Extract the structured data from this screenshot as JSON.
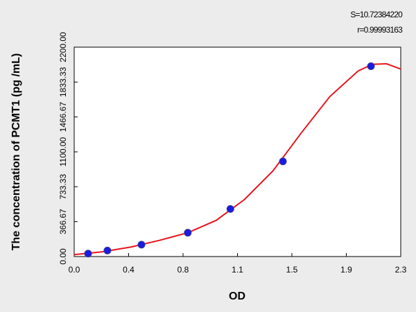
{
  "chart_data": {
    "type": "scatter",
    "x_label": "OD",
    "y_label": "The concentration of PCMT1 (pg /mL)",
    "annotations": [
      "S=10.72384220",
      "r=0.99993163"
    ],
    "xlim": [
      0,
      2.3
    ],
    "ylim": [
      0,
      2200
    ],
    "xticks": [
      {
        "value": 0,
        "label": "0.0"
      },
      {
        "value": 0.3833,
        "label": "0.4"
      },
      {
        "value": 0.7667,
        "label": "0.8"
      },
      {
        "value": 1.15,
        "label": "1.1"
      },
      {
        "value": 1.5333,
        "label": "1.5"
      },
      {
        "value": 1.9167,
        "label": "1.9"
      },
      {
        "value": 2.3,
        "label": "2.3"
      }
    ],
    "yticks": [
      {
        "value": 0,
        "label": "0.00"
      },
      {
        "value": 366.67,
        "label": "366.67"
      },
      {
        "value": 733.33,
        "label": "733.33"
      },
      {
        "value": 1100,
        "label": "1100.00"
      },
      {
        "value": 1466.67,
        "label": "1466.67"
      },
      {
        "value": 1833.33,
        "label": "1833.33"
      },
      {
        "value": 2200,
        "label": "2200.00"
      }
    ],
    "grid": false,
    "series": [
      {
        "type": "line",
        "color": "#e8141c",
        "x": [
          0,
          0.2,
          0.4,
          0.6,
          0.8,
          1.0,
          1.2,
          1.4,
          1.6,
          1.8,
          2.0,
          2.1,
          2.2,
          2.3
        ],
        "values": [
          20,
          50,
          100,
          170,
          250,
          380,
          600,
          900,
          1300,
          1680,
          1950,
          2020,
          2025,
          1970
        ]
      },
      {
        "type": "scatter",
        "color": "#1a1ae6",
        "x": [
          0.098,
          0.234,
          0.474,
          0.8,
          1.1,
          1.47,
          2.09
        ],
        "values": [
          31.25,
          62.5,
          125,
          250,
          500,
          1000,
          2000
        ]
      }
    ]
  }
}
